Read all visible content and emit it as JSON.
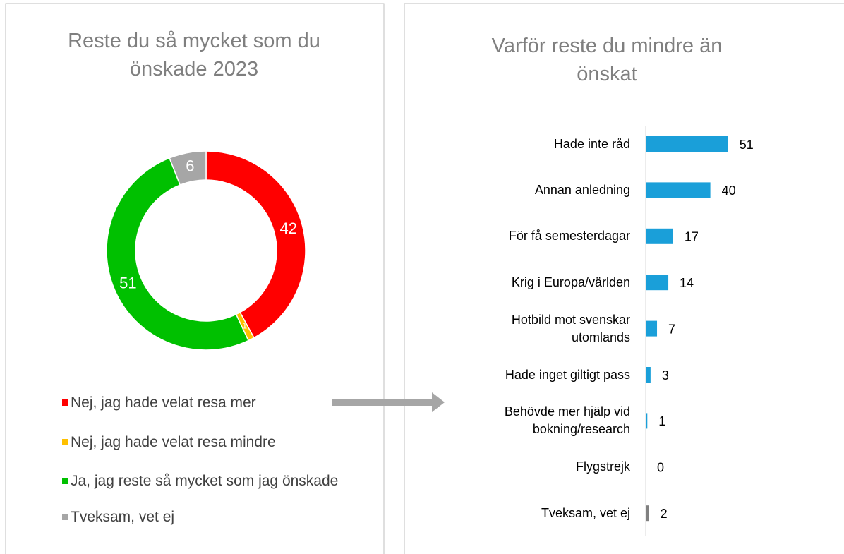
{
  "chart_data": [
    {
      "type": "donut",
      "title": "Reste du så mycket som du önskade 2023",
      "categories": [
        "Nej, jag hade velat resa mer",
        "Nej, jag hade velat resa mindre",
        "Ja, jag reste så mycket som jag önskade",
        "Tveksam, vet ej"
      ],
      "values": [
        42,
        1,
        51,
        6
      ],
      "colors": [
        "#ff0000",
        "#ffc000",
        "#00c000",
        "#a6a6a6"
      ]
    },
    {
      "type": "hbar",
      "title": "Varför reste du mindre än önskat",
      "categories": [
        "Hade inte råd",
        "Annan anledning",
        "För få semesterdagar",
        "Krig i Europa/världen",
        "Hotbild mot svenskar utomlands",
        "Hade inget giltigt pass",
        "Behövde mer hjälp vid bokning/research",
        "Flygstrejk",
        "Tveksam, vet ej"
      ],
      "values": [
        51,
        40,
        17,
        14,
        7,
        3,
        1,
        0,
        2
      ],
      "colors": [
        "#1a9fd9",
        "#1a9fd9",
        "#1a9fd9",
        "#1a9fd9",
        "#1a9fd9",
        "#1a9fd9",
        "#1a9fd9",
        "#1a9fd9",
        "#808080"
      ]
    }
  ]
}
